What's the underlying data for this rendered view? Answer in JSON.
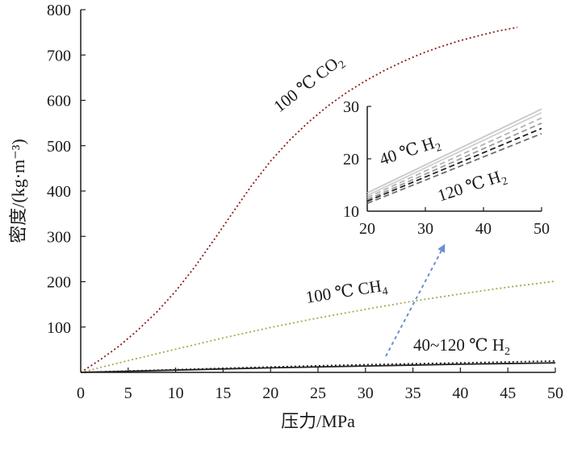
{
  "chart_data": [
    {
      "type": "line",
      "xlabel": "压力/MPa",
      "ylabel": "密度/(kg·m⁻³)",
      "xlim": [
        0,
        50
      ],
      "ylim": [
        0,
        800
      ],
      "xticks": [
        0,
        5,
        10,
        15,
        20,
        25,
        30,
        35,
        40,
        45,
        50
      ],
      "yticks": [
        100,
        200,
        300,
        400,
        500,
        600,
        700,
        800
      ],
      "grid": false,
      "series": [
        {
          "name": "100 ℃ CO₂",
          "color": "#8b1a1a",
          "style": "dotted",
          "x": [
            0,
            2,
            4,
            6,
            8,
            10,
            12,
            14,
            16,
            18,
            20,
            22,
            24,
            26,
            28,
            30,
            32,
            34,
            36,
            38,
            40,
            42,
            44,
            46
          ],
          "y": [
            0,
            27,
            57,
            93,
            133,
            179,
            232,
            291,
            352,
            412,
            466,
            512,
            552,
            587,
            617,
            643,
            666,
            686,
            704,
            719,
            732,
            743,
            753,
            761
          ]
        },
        {
          "name": "100 ℃ CH₄",
          "color": "#a8a850",
          "style": "dotted",
          "x": [
            0,
            5,
            10,
            15,
            20,
            25,
            30,
            35,
            40,
            45,
            50
          ],
          "y": [
            0,
            26,
            51,
            76,
            99,
            120,
            139,
            157,
            173,
            188,
            201
          ]
        },
        {
          "name": "40~120 ℃ H₂",
          "color": "#222222",
          "style": "dotted",
          "x": [
            0,
            10,
            20,
            30,
            40,
            50
          ],
          "y": [
            0,
            6,
            12,
            17,
            21,
            25
          ]
        },
        {
          "color": "#222222",
          "style": "solid",
          "x": [
            0,
            10,
            20,
            30,
            40,
            50
          ],
          "y": [
            0,
            5,
            10,
            14,
            18,
            21
          ]
        }
      ],
      "annotations": [
        {
          "text": "100 ℃ CO",
          "sub": "2"
        },
        {
          "text": "100 ℃ CH",
          "sub": "4"
        },
        {
          "text": "40~120 ℃ H",
          "sub": "2"
        }
      ]
    },
    {
      "type": "line",
      "xlim": [
        20,
        50
      ],
      "ylim": [
        10,
        30
      ],
      "xticks": [
        20,
        30,
        40,
        50
      ],
      "yticks": [
        10,
        20,
        30
      ],
      "grid": false,
      "series": [
        {
          "color": "#c8c8c8",
          "style": "solid",
          "x": [
            20,
            50
          ],
          "y": [
            13.5,
            29.5
          ]
        },
        {
          "color": "#cfcfcf",
          "style": "solid",
          "x": [
            20,
            50
          ],
          "y": [
            13.0,
            28.8
          ]
        },
        {
          "color": "#b5b5b5",
          "style": "dashed",
          "x": [
            20,
            50
          ],
          "y": [
            12.6,
            27.8
          ]
        },
        {
          "color": "#9a9a9a",
          "style": "dashed",
          "x": [
            20,
            50
          ],
          "y": [
            12.2,
            26.8
          ]
        },
        {
          "color": "#222222",
          "style": "dashed",
          "x": [
            20,
            50
          ],
          "y": [
            11.9,
            25.8
          ]
        },
        {
          "color": "#6d6d6d",
          "style": "dashed",
          "x": [
            20,
            50
          ],
          "y": [
            11.5,
            24.8
          ]
        }
      ],
      "annotations": [
        {
          "text": "40 ℃ H",
          "sub": "2"
        },
        {
          "text": "120 ℃ H",
          "sub": "2"
        }
      ]
    }
  ],
  "arrow_color": "#6b8fd0"
}
